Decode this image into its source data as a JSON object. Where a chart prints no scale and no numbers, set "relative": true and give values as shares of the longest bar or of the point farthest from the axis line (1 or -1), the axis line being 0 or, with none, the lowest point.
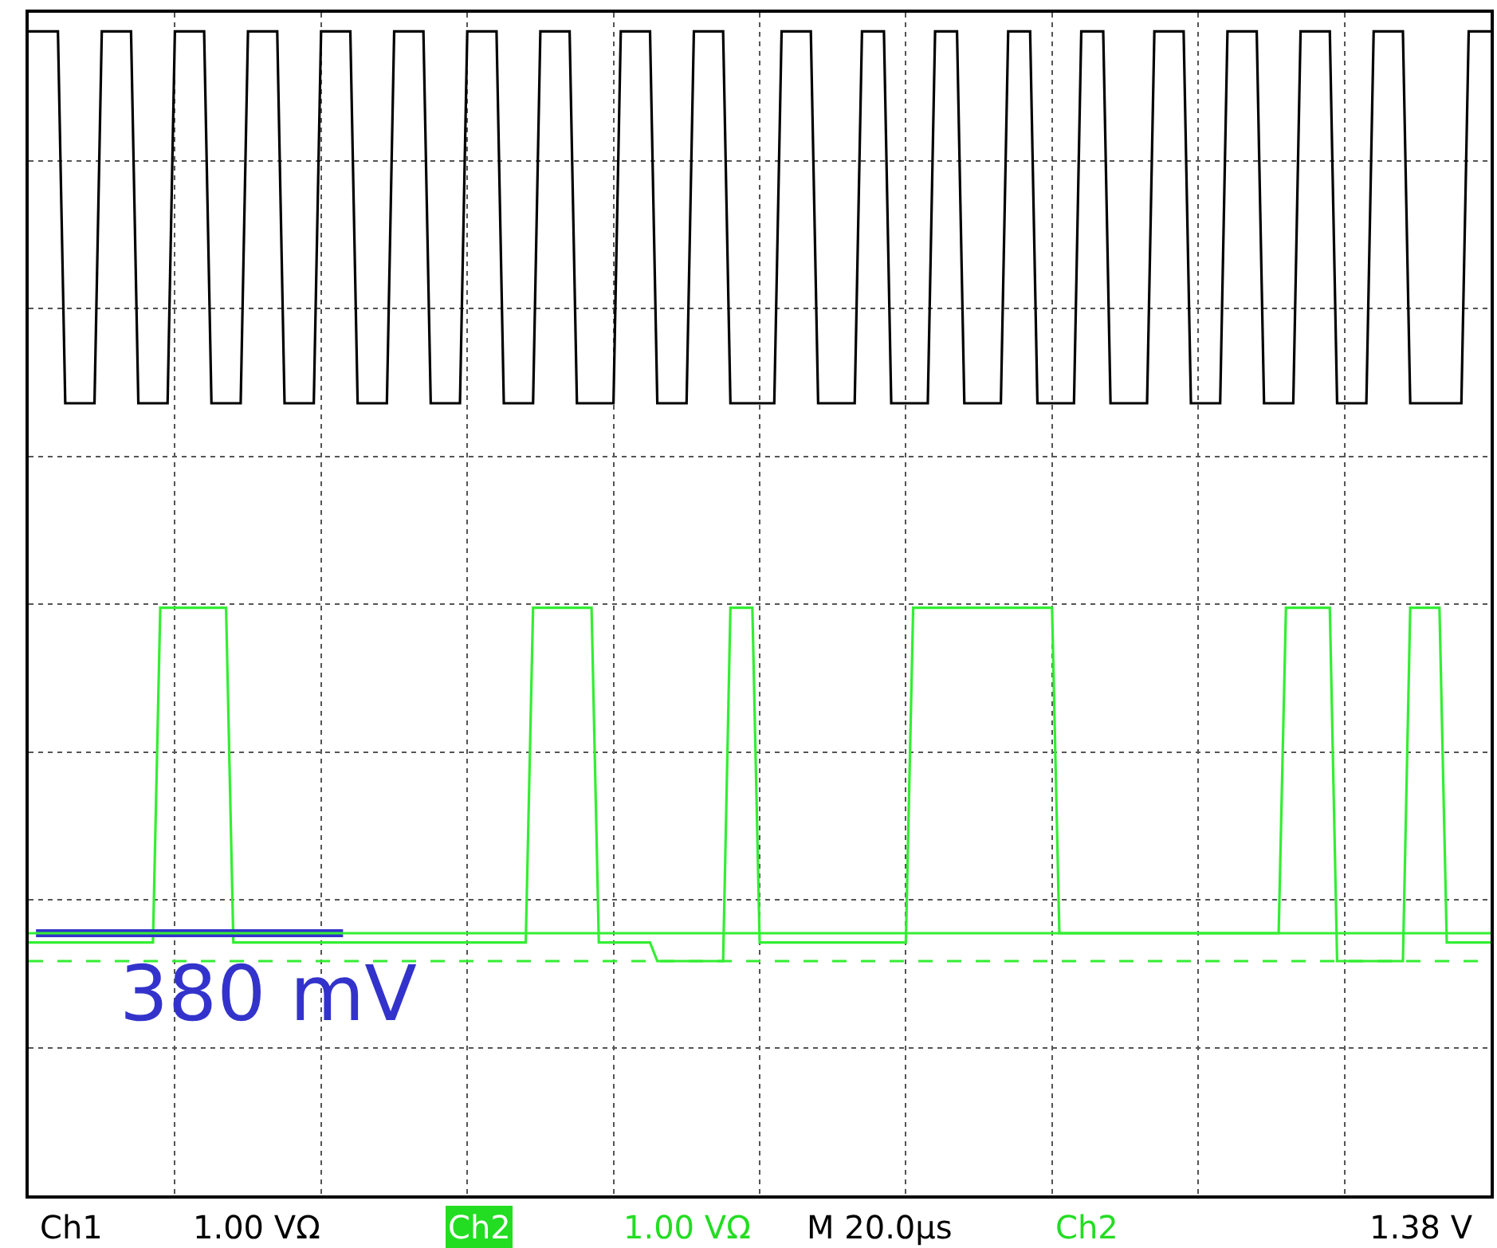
{
  "chart_data": {
    "type": "line",
    "relative": true,
    "categories": [
      null,
      null,
      null,
      null,
      null,
      null,
      null,
      null,
      null,
      null,
      null,
      null,
      null,
      null,
      null,
      null,
      null,
      null,
      null,
      null,
      null,
      null,
      null,
      null,
      null,
      null,
      null,
      null,
      null,
      null,
      null,
      null,
      null,
      null,
      null,
      null,
      null,
      null,
      null,
      null,
      null,
      null,
      null,
      null,
      null,
      null,
      null,
      null,
      null,
      null,
      null,
      null,
      null,
      null,
      null,
      null,
      null,
      null,
      null,
      null,
      null,
      null,
      null,
      null,
      null,
      null,
      null,
      null,
      null,
      null,
      null,
      null,
      null,
      null,
      null,
      null,
      null,
      null,
      null,
      null,
      null,
      null,
      null,
      null,
      null,
      null,
      null,
      null,
      null,
      null,
      null,
      null,
      null,
      null,
      null,
      null,
      null,
      null,
      null,
      null,
      null,
      null,
      null,
      null,
      null,
      null,
      null,
      null,
      null,
      null,
      null,
      null,
      null,
      null,
      null,
      null,
      null,
      null,
      null,
      null,
      null,
      null,
      null,
      null,
      null,
      null,
      null,
      null,
      null,
      null,
      null,
      null,
      null,
      null,
      null,
      null,
      null,
      null,
      null,
      null,
      null,
      null,
      null,
      null,
      null,
      null,
      null,
      null,
      null,
      null,
      null,
      null,
      null,
      null,
      null,
      null,
      null,
      null,
      null,
      null,
      null,
      null,
      null,
      null,
      null,
      null,
      null,
      null,
      null,
      null,
      null,
      null,
      null,
      null,
      null,
      null,
      null,
      null,
      null,
      null,
      null,
      null,
      null,
      null,
      null,
      null,
      null,
      null,
      null,
      null,
      null,
      null,
      null,
      null,
      null,
      null,
      null,
      null,
      null,
      null,
      null
    ],
    "grid": true,
    "series": [
      {
        "color": "#000000",
        "values": [
          1,
          1,
          1,
          1,
          1,
          0.6,
          0.6,
          0.6,
          0.6,
          0.6,
          1,
          1,
          1,
          1,
          1,
          0.6,
          0.6,
          0.6,
          0.6,
          0.6,
          1,
          1,
          1,
          1,
          1,
          0.6,
          0.6,
          0.6,
          0.6,
          0.6,
          1,
          1,
          1,
          1,
          1,
          0.6,
          0.6,
          0.6,
          0.6,
          0.6,
          1,
          1,
          1,
          1,
          1,
          0.6,
          0.6,
          0.6,
          0.6,
          0.6,
          1,
          1,
          1,
          1,
          1,
          0.6,
          0.6,
          0.6,
          0.6,
          0.6,
          1,
          1,
          1,
          1,
          1,
          0.6,
          0.6,
          0.6,
          0.6,
          0.6,
          1,
          1,
          1,
          1,
          1,
          0.6,
          0.6,
          0.6,
          0.6,
          0.6,
          0.6,
          1,
          1,
          1,
          1,
          1,
          0.6,
          0.6,
          0.6,
          0.6,
          0.6,
          1,
          1,
          1,
          1,
          1,
          0.6,
          0.6,
          0.6,
          0.6,
          0.6,
          0.6,
          0.6,
          1,
          1,
          1,
          1,
          1,
          0.6,
          0.6,
          0.6,
          0.6,
          0.6,
          0.6,
          1,
          1,
          1,
          1,
          0.6,
          0.6,
          0.6,
          0.6,
          0.6,
          0.6,
          1,
          1,
          1,
          1,
          0.6,
          0.6,
          0.6,
          0.6,
          0.6,
          0.6,
          1,
          1,
          1,
          1,
          0.6,
          0.6,
          0.6,
          0.6,
          0.6,
          0.6,
          1,
          1,
          1,
          1,
          0.6,
          0.6,
          0.6,
          0.6,
          0.6,
          0.6,
          1,
          1,
          1,
          1,
          1,
          0.6,
          0.6,
          0.6,
          0.6,
          0.6,
          1,
          1,
          1,
          1,
          1,
          0.6,
          0.6,
          0.6,
          0.6,
          0.6,
          1,
          1,
          1,
          1,
          1,
          0.6,
          0.6,
          0.6,
          0.6,
          0.6,
          1,
          1,
          1,
          1,
          1,
          0.6,
          0.6,
          0.6,
          0.6,
          0.6,
          0.6,
          0.6,
          0.6,
          1,
          1,
          1,
          1
        ]
      },
      {
        "color": "#33ee33",
        "values": [
          0.02,
          0.02,
          0.02,
          0.02,
          0.02,
          0.02,
          0.02,
          0.02,
          0.02,
          0.02,
          0.02,
          0.02,
          0.02,
          0.02,
          0.02,
          0.02,
          0.02,
          0.02,
          0.38,
          0.38,
          0.38,
          0.38,
          0.38,
          0.38,
          0.38,
          0.38,
          0.38,
          0.38,
          0.02,
          0.02,
          0.02,
          0.02,
          0.02,
          0.02,
          0.02,
          0.02,
          0.02,
          0.02,
          0.02,
          0.02,
          0.02,
          0.02,
          0.02,
          0.02,
          0.02,
          0.02,
          0.02,
          0.02,
          0.02,
          0.02,
          0.02,
          0.02,
          0.02,
          0.02,
          0.02,
          0.02,
          0.02,
          0.02,
          0.02,
          0.02,
          0.02,
          0.02,
          0.02,
          0.02,
          0.02,
          0.02,
          0.02,
          0.02,
          0.02,
          0.38,
          0.38,
          0.38,
          0.38,
          0.38,
          0.38,
          0.38,
          0.38,
          0.38,
          0.02,
          0.02,
          0.02,
          0.02,
          0.02,
          0.02,
          0.02,
          0.02,
          0,
          0,
          0,
          0,
          0,
          0,
          0,
          0,
          0,
          0,
          0.38,
          0.38,
          0.38,
          0.38,
          0.02,
          0.02,
          0.02,
          0.02,
          0.02,
          0.02,
          0.02,
          0.02,
          0.02,
          0.02,
          0.02,
          0.02,
          0.02,
          0.02,
          0.02,
          0.02,
          0.02,
          0.02,
          0.02,
          0.02,
          0.02,
          0.38,
          0.38,
          0.38,
          0.38,
          0.38,
          0.38,
          0.38,
          0.38,
          0.38,
          0.38,
          0.38,
          0.38,
          0.38,
          0.38,
          0.38,
          0.38,
          0.38,
          0.38,
          0.38,
          0.38,
          0.03,
          0.03,
          0.03,
          0.03,
          0.03,
          0.03,
          0.03,
          0.03,
          0.03,
          0.03,
          0.03,
          0.03,
          0.03,
          0.03,
          0.03,
          0.03,
          0.03,
          0.03,
          0.03,
          0.03,
          0.03,
          0.03,
          0.03,
          0.03,
          0.03,
          0.03,
          0.03,
          0.03,
          0.03,
          0.03,
          0.03,
          0.38,
          0.38,
          0.38,
          0.38,
          0.38,
          0.38,
          0.38,
          0,
          0,
          0,
          0,
          0,
          0,
          0,
          0,
          0,
          0,
          0.38,
          0.38,
          0.38,
          0.38,
          0.38,
          0.02,
          0.02,
          0.02,
          0.02,
          0.02,
          0.02,
          0.02
        ]
      },
      {
        "color": "#3333cc",
        "values": [
          null,
          0.03,
          0.03,
          0.03,
          0.03,
          0.03,
          0.03,
          0.03,
          0.03,
          0.03,
          0.03,
          0.03,
          0.03,
          0.03,
          0.03,
          0.03,
          0.03,
          0.03,
          0.03,
          0.03,
          0.03,
          0.03,
          0.03,
          0.03,
          0.03,
          0.03,
          0.03,
          0.03,
          0.03,
          0.03,
          0.03,
          0.03,
          0.03,
          0.03,
          0.03,
          0.03,
          0.03,
          0.03,
          0.03,
          0.03,
          0.03,
          0.03,
          0.03,
          0.03,
          null,
          null,
          null,
          null,
          null,
          null,
          null,
          null,
          null,
          null,
          null,
          null,
          null,
          null,
          null,
          null,
          null,
          null,
          null,
          null,
          null,
          null,
          null,
          null,
          null,
          null,
          null,
          null,
          null,
          null,
          null,
          null,
          null,
          null,
          null,
          null,
          null,
          null,
          null,
          null,
          null,
          null,
          null,
          null,
          null,
          null,
          null,
          null,
          null,
          null,
          null,
          null,
          null,
          null,
          null,
          null,
          null,
          null,
          null,
          null,
          null,
          null,
          null,
          null,
          null,
          null,
          null,
          null,
          null,
          null,
          null,
          null,
          null,
          null,
          null,
          null,
          null,
          null,
          null,
          null,
          null,
          null,
          null,
          null,
          null,
          null,
          null,
          null,
          null,
          null,
          null,
          null,
          null,
          null,
          null,
          null,
          null,
          null,
          null,
          null,
          null,
          null,
          null,
          null,
          null,
          null,
          null,
          null,
          null,
          null,
          null,
          null,
          null,
          null,
          null,
          null,
          null,
          null,
          null,
          null,
          null,
          null,
          null,
          null,
          null,
          null,
          null,
          null,
          null,
          null,
          null,
          null,
          null,
          null,
          null,
          null,
          null,
          null,
          null,
          null,
          null,
          null,
          null,
          null,
          null,
          null,
          null,
          null,
          null,
          null,
          null,
          null,
          null,
          null,
          null,
          null,
          null
        ]
      }
    ],
    "ref_lines": [
      {
        "axis": "y",
        "value": 0.03,
        "color": "#33ee33",
        "line_style": "solid"
      },
      {
        "axis": "y",
        "value": 0,
        "color": "#33ee33",
        "line_style": "dashed"
      }
    ],
    "annotations": [
      "380 mV",
      "Ch1",
      "1.00 VΩ",
      "Ch2",
      "1.00 VΩ",
      "M 20.0µs",
      "Ch2",
      "1.38 V"
    ]
  }
}
